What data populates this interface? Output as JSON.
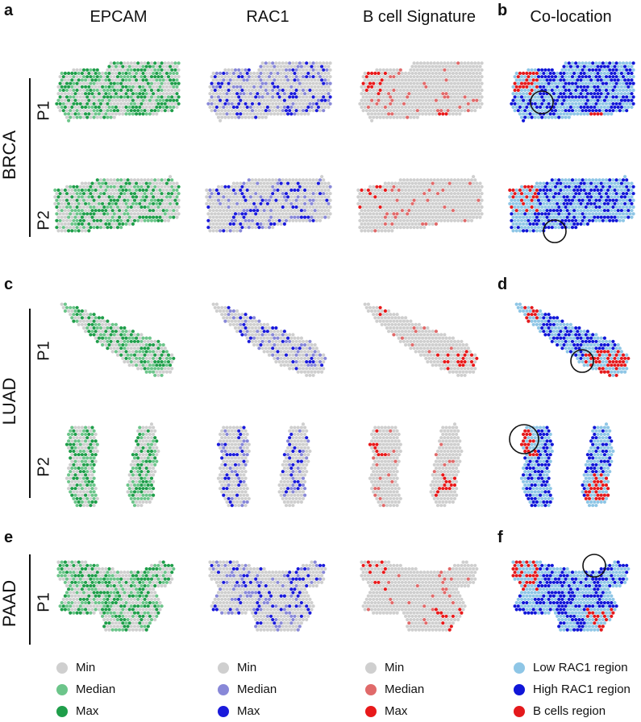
{
  "panel_labels": [
    "a",
    "b",
    "c",
    "d",
    "e",
    "f"
  ],
  "column_headers": [
    "EPCAM",
    "RAC1",
    "B cell Signature",
    "Co-location"
  ],
  "cancer_types": [
    "BRCA",
    "LUAD",
    "PAAD"
  ],
  "sample_labels": {
    "brca": [
      "P1",
      "P2"
    ],
    "luad": [
      "P1",
      "P2"
    ],
    "paad": [
      "P1"
    ]
  },
  "colors": {
    "tissue_min": "#cfcfcf",
    "epcam_median": "#6cc58a",
    "epcam_max": "#1f9e4a",
    "rac1_median": "#8888d8",
    "rac1_max": "#1a1adb",
    "bcell_median": "#e06a6a",
    "bcell_max": "#e8191a",
    "low_rac1": "#8ec6e6",
    "high_rac1": "#1016d8",
    "bcells": "#e4191c",
    "circle": "#111111"
  },
  "legends": {
    "epcam": [
      "Min",
      "Median",
      "Max"
    ],
    "rac1": [
      "Min",
      "Median",
      "Max"
    ],
    "bcell": [
      "Min",
      "Median",
      "Max"
    ],
    "colocation": [
      "Low RAC1 region",
      "High RAC1 region",
      "B cells region"
    ]
  }
}
